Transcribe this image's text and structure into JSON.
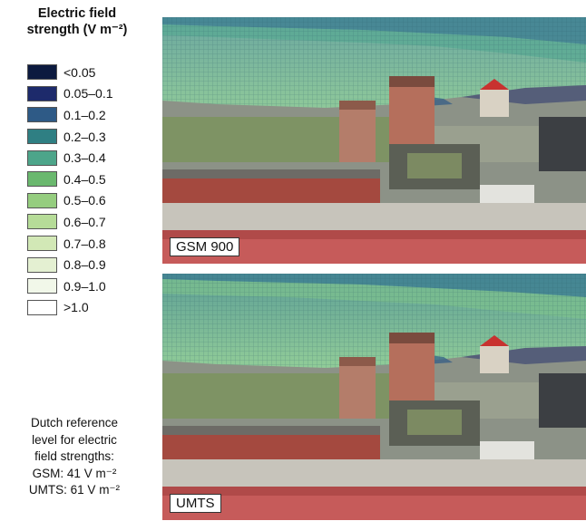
{
  "legend": {
    "title_line1": "Electric field",
    "title_line2": "strength (V m⁻²)",
    "items": [
      {
        "label": "<0.05",
        "color": "#0c1a3f"
      },
      {
        "label": "0.05–0.1",
        "color": "#1d2a6b"
      },
      {
        "label": "0.1–0.2",
        "color": "#2e5a86"
      },
      {
        "label": "0.2–0.3",
        "color": "#2f7f83"
      },
      {
        "label": "0.3–0.4",
        "color": "#4da58a"
      },
      {
        "label": "0.4–0.5",
        "color": "#6ab86e"
      },
      {
        "label": "0.5–0.6",
        "color": "#95cd7f"
      },
      {
        "label": "0.6–0.7",
        "color": "#b6dc98"
      },
      {
        "label": "0.7–0.8",
        "color": "#d2e8b6"
      },
      {
        "label": "0.8–0.9",
        "color": "#e4f0d2"
      },
      {
        "label": "0.9–1.0",
        "color": "#f1f7e9"
      },
      {
        "label": ">1.0",
        "color": "#ffffff"
      }
    ]
  },
  "note": {
    "line1": "Dutch reference",
    "line2": "level for electric",
    "line3": "field strengths:",
    "line4": "GSM: 41 V m⁻²",
    "line5": "UMTS: 61 V m⁻²"
  },
  "panels": [
    {
      "label": "GSM 900"
    },
    {
      "label": "UMTS"
    }
  ]
}
